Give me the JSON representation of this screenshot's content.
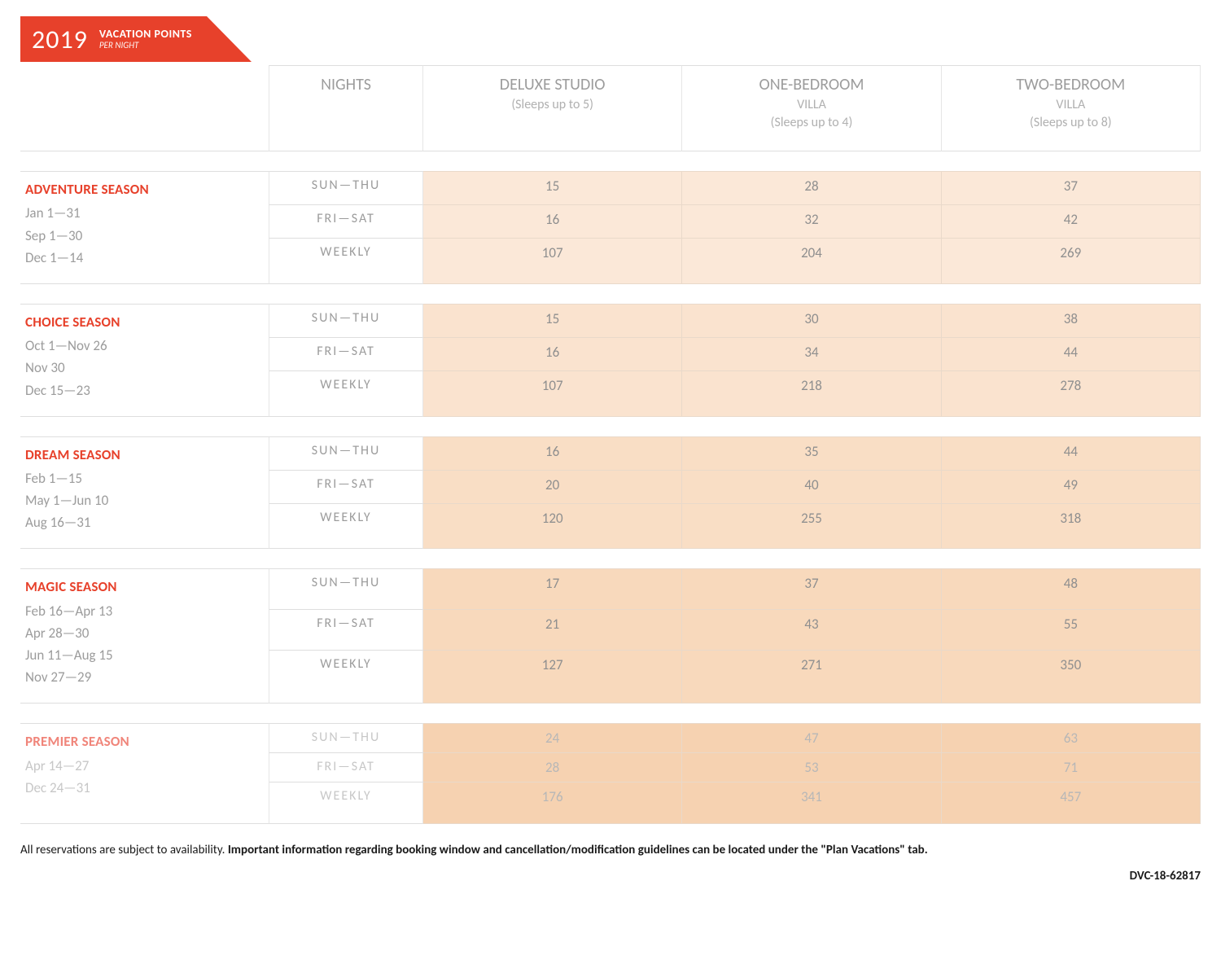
{
  "banner": {
    "year": "2019",
    "title": "VACATION POINTS",
    "subtitle": "PER NIGHT"
  },
  "columns": {
    "nights": "NIGHTS",
    "rooms": [
      {
        "name": "DELUXE STUDIO",
        "sleeps": "(Sleeps up to 5)"
      },
      {
        "name": "ONE-BEDROOM",
        "sub": "VILLA",
        "sleeps": "(Sleeps up to 4)"
      },
      {
        "name": "TWO-BEDROOM",
        "sub": "VILLA",
        "sleeps": "(Sleeps up to 8)"
      }
    ]
  },
  "night_labels": {
    "sun_thu": "SUN—THU",
    "fri_sat": "FRI—SAT",
    "weekly": "WEEKLY"
  },
  "seasons": [
    {
      "name": "ADVENTURE SEASON",
      "dates": [
        "Jan 1—31",
        "Sep 1—30",
        "Dec 1—14"
      ],
      "shade": "#fbe8d8",
      "points": {
        "sun_thu": [
          "15",
          "28",
          "37"
        ],
        "fri_sat": [
          "16",
          "32",
          "42"
        ],
        "weekly": [
          "107",
          "204",
          "269"
        ]
      }
    },
    {
      "name": "CHOICE SEASON",
      "dates": [
        "Oct 1—Nov 26",
        "Nov 30",
        "Dec 15—23"
      ],
      "shade": "#fae3cf",
      "points": {
        "sun_thu": [
          "15",
          "30",
          "38"
        ],
        "fri_sat": [
          "16",
          "34",
          "44"
        ],
        "weekly": [
          "107",
          "218",
          "278"
        ]
      }
    },
    {
      "name": "DREAM SEASON",
      "dates": [
        "Feb 1—15",
        "May 1—Jun 10",
        "Aug 16—31"
      ],
      "shade": "#f9dec5",
      "points": {
        "sun_thu": [
          "16",
          "35",
          "44"
        ],
        "fri_sat": [
          "20",
          "40",
          "49"
        ],
        "weekly": [
          "120",
          "255",
          "318"
        ]
      }
    },
    {
      "name": "MAGIC SEASON",
      "dates": [
        "Feb 16—Apr 13",
        "Apr 28—30",
        "Jun 11—Aug 15",
        "Nov 27—29"
      ],
      "shade": "#f8d9bc",
      "points": {
        "sun_thu": [
          "17",
          "37",
          "48"
        ],
        "fri_sat": [
          "21",
          "43",
          "55"
        ],
        "weekly": [
          "127",
          "271",
          "350"
        ]
      }
    },
    {
      "name": "PREMIER SEASON",
      "premier": true,
      "dates": [
        "Apr 14—27",
        "Dec 24—31"
      ],
      "shade": "#f6d2b1",
      "points": {
        "sun_thu": [
          "24",
          "47",
          "63"
        ],
        "fri_sat": [
          "28",
          "53",
          "71"
        ],
        "weekly": [
          "176",
          "341",
          "457"
        ]
      }
    }
  ],
  "footer": {
    "text_plain": "All reservations are subject to availability. ",
    "text_bold": "Important information regarding booking window and cancellation/modification guidelines can be located under the \"Plan Vacations\" tab.",
    "code": "DVC-18-62817"
  }
}
